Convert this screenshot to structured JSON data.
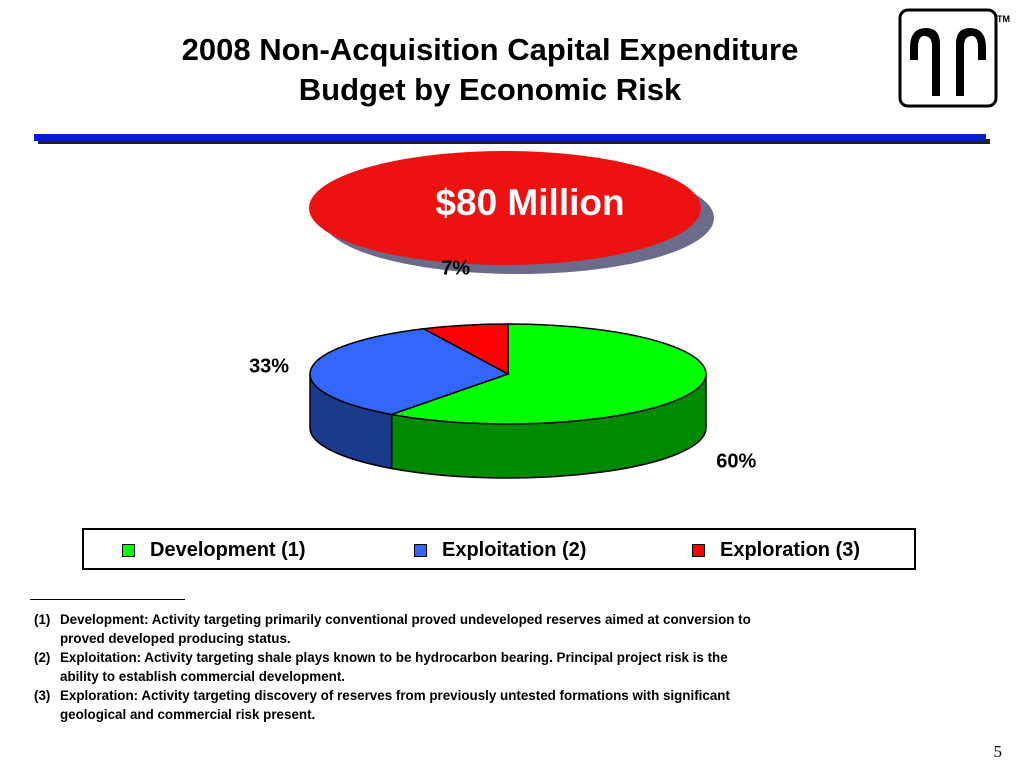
{
  "title": {
    "line1": "2008 Non-Acquisition Capital Expenditure",
    "line2": "Budget by Economic Risk"
  },
  "logo": {
    "icon": "company-logo-icon",
    "trademark": "TM"
  },
  "budget_label": "$80 Million",
  "colors": {
    "rule": "#0a1ccc",
    "badge": "#ee1111",
    "development": "#00ff00",
    "exploitation": "#3366ff",
    "exploration": "#ff0000"
  },
  "chart_data": {
    "type": "pie",
    "title": "",
    "slices": [
      {
        "name": "Development (1)",
        "value": 60,
        "label": "60%",
        "color": "#00ff00"
      },
      {
        "name": "Exploitation (2)",
        "value": 33,
        "label": "33%",
        "color": "#3366ff"
      },
      {
        "name": "Exploration (3)",
        "value": 7,
        "label": "7%",
        "color": "#ff0000"
      }
    ],
    "legend_position": "bottom"
  },
  "legend": [
    {
      "label": "Development (1)",
      "color": "#00ff00"
    },
    {
      "label": "Exploitation (2)",
      "color": "#3366ff"
    },
    {
      "label": "Exploration (3)",
      "color": "#ff0000"
    }
  ],
  "footnotes": [
    {
      "num": "(1)",
      "line1": "Development: Activity targeting primarily conventional proved undeveloped reserves aimed at conversion to",
      "line2": "proved developed producing status."
    },
    {
      "num": "(2)",
      "line1": "Exploitation: Activity targeting shale plays known to be hydrocarbon bearing.  Principal project risk is the",
      "line2": "ability to establish commercial development."
    },
    {
      "num": "(3)",
      "line1": "Exploration: Activity targeting discovery of reserves from previously untested formations with significant",
      "line2": "geological and commercial risk present."
    }
  ],
  "page_number": "5"
}
